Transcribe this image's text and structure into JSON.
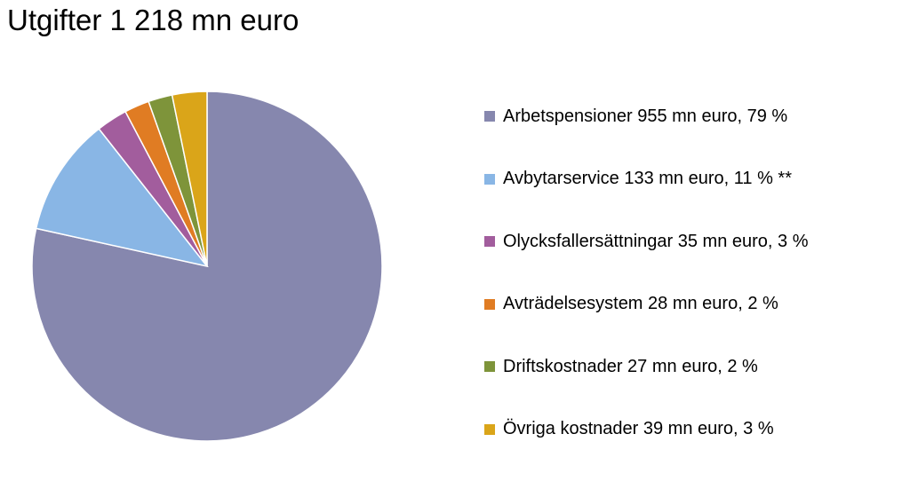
{
  "chart_data": {
    "type": "pie",
    "title": "Utgifter 1 218 mn euro",
    "legend_position": "right",
    "slices": [
      {
        "label": "Arbetspensioner 955 mn euro, 79 %",
        "value": 955,
        "color": "#8687AE"
      },
      {
        "label": "Avbytarservice 133 mn euro, 11 % **",
        "value": 133,
        "color": "#89B6E5"
      },
      {
        "label": "Olycksfallersättningar 35 mn euro, 3 %",
        "value": 35,
        "color": "#A25D9D"
      },
      {
        "label": "Avträdelsesystem 28 mn euro, 2 %",
        "value": 28,
        "color": "#E07C23"
      },
      {
        "label": "Driftskostnader 27 mn euro, 2 %",
        "value": 27,
        "color": "#7E943A"
      },
      {
        "label": "Övriga kostnader 39 mn euro, 3 %",
        "value": 39,
        "color": "#DAA519"
      }
    ]
  }
}
